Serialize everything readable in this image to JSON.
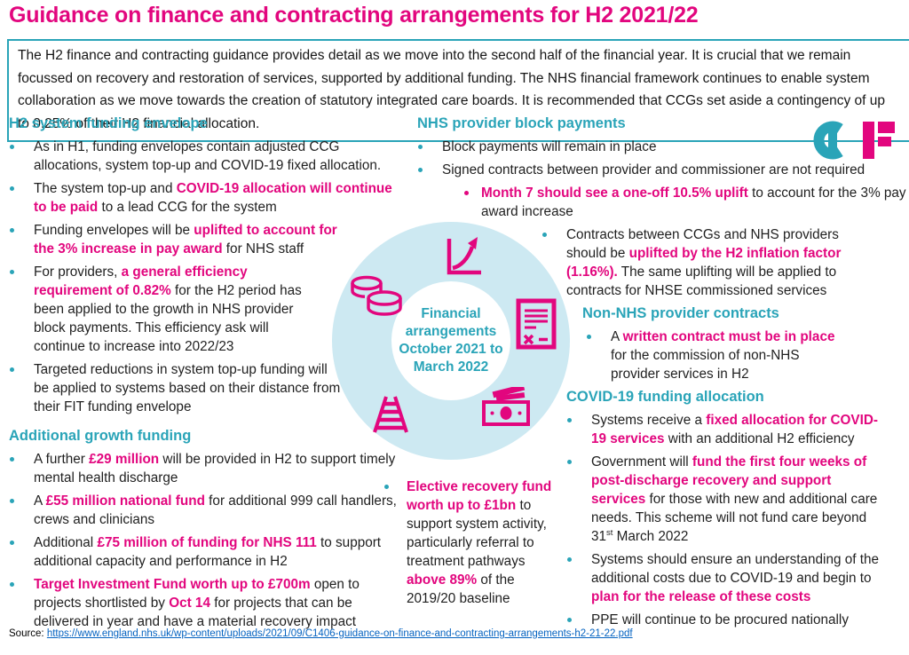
{
  "colors": {
    "magenta": "#E2067E",
    "teal": "#2AA4B8",
    "lightblue": "#CDE9F2",
    "link": "#0563C1",
    "text": "#1F1F1F"
  },
  "header": {
    "title": "Guidance on finance and contracting arrangements for H2 2021/22"
  },
  "intro": {
    "text": "The H2 finance and contracting guidance provides detail as we move into the second half of the financial year. It is crucial that we remain focussed on recovery and restoration of services, supported by additional funding. The NHS financial framework continues to enable system collaboration as we move towards the creation of statutory integrated care boards. It is recommended that CCGs set aside a contingency of up to 0.25% of their H2 financial allocation."
  },
  "logo": {
    "letters": "CF"
  },
  "sections": {
    "envelope": {
      "heading": "H2 system funding envelope",
      "bullets": [
        {
          "segments": [
            {
              "t": "As in H1, funding envelopes contain adjusted CCG allocations, system top-up and COVID-19 fixed allocation."
            }
          ]
        },
        {
          "segments": [
            {
              "t": "The system top-up and "
            },
            {
              "t": "COVID-19 allocation will continue to be paid",
              "b": true
            },
            {
              "t": " to a lead CCG for the system"
            }
          ]
        },
        {
          "segments": [
            {
              "t": "Funding envelopes will be "
            },
            {
              "t": "uplifted to account for the 3% increase in pay award",
              "b": true
            },
            {
              "t": " for NHS staff"
            }
          ]
        },
        {
          "segments": [
            {
              "t": "For providers, "
            },
            {
              "t": "a general efficiency requirement of 0.82%",
              "b": true
            },
            {
              "t": " for the H2 period has been applied to the growth in NHS provider block payments. This efficiency ask will continue to increase into 2022/23"
            }
          ]
        },
        {
          "segments": [
            {
              "t": "Targeted reductions in system top-up funding will be applied to systems based on their distance from their FIT funding envelope"
            }
          ]
        }
      ]
    },
    "growth": {
      "heading": "Additional growth funding",
      "bullets": [
        {
          "segments": [
            {
              "t": "A further "
            },
            {
              "t": "£29 million",
              "b": true
            },
            {
              "t": " will be provided in H2 to support timely mental health discharge"
            }
          ]
        },
        {
          "segments": [
            {
              "t": "A "
            },
            {
              "t": "£55 million national fund",
              "b": true
            },
            {
              "t": " for additional 999 call handlers, crews and clinicians"
            }
          ]
        },
        {
          "segments": [
            {
              "t": "Additional "
            },
            {
              "t": "£75 million of funding for NHS 111",
              "b": true
            },
            {
              "t": " to support additional capacity and performance in H2"
            }
          ]
        },
        {
          "segments": [
            {
              "t": "Target Investment Fund worth up to £700m",
              "b": true
            },
            {
              "t": " open to projects shortlisted by "
            },
            {
              "t": "Oct 14",
              "b": true
            },
            {
              "t": " for projects that can be delivered in year and have a material recovery impact"
            }
          ]
        }
      ]
    },
    "block": {
      "heading": "NHS provider block payments",
      "bullets": [
        {
          "segments": [
            {
              "t": "Block payments will remain in place"
            }
          ]
        },
        {
          "segments": [
            {
              "t": "Signed contracts between provider and commissioner are not required"
            }
          ]
        }
      ],
      "sub1": [
        {
          "pink": true,
          "segments": [
            {
              "t": "Month 7 should see a one-off 10.5% uplift",
              "b": true
            },
            {
              "t": " to account for the 3% pay award increase"
            }
          ]
        }
      ],
      "sub2": [
        {
          "segments": [
            {
              "t": "Contracts between CCGs and NHS providers should be "
            },
            {
              "t": "uplifted by the H2 inflation factor (1.16%).",
              "b": true
            },
            {
              "t": " The same uplifting will be applied to contracts for NHSE commissioned services"
            }
          ]
        }
      ]
    },
    "nonnhs": {
      "heading": "Non-NHS provider contracts",
      "bullets": [
        {
          "segments": [
            {
              "t": "A "
            },
            {
              "t": "written contract must be in place",
              "b": true
            },
            {
              "t": " for the commission of non-NHS provider services in H2"
            }
          ]
        }
      ]
    },
    "covid": {
      "heading": "COVID-19 funding allocation",
      "bullets": [
        {
          "segments": [
            {
              "t": "Systems receive a "
            },
            {
              "t": "fixed allocation for COVID-19 services",
              "b": true
            },
            {
              "t": " with an additional H2 efficiency"
            }
          ]
        },
        {
          "segments": [
            {
              "t": "Government will "
            },
            {
              "t": "fund the first four weeks of post-discharge recovery and support services",
              "b": true
            },
            {
              "t": " for those with new and additional care needs. This scheme will not fund care beyond 31"
            },
            {
              "t": "st",
              "sup": true
            },
            {
              "t": " March 2022"
            }
          ]
        },
        {
          "segments": [
            {
              "t": "Systems should ensure an understanding of the additional costs due to COVID-19 and begin to "
            },
            {
              "t": "plan for the release of these costs",
              "b": true
            }
          ]
        },
        {
          "segments": [
            {
              "t": "PPE will continue to be procured nationally"
            }
          ]
        }
      ]
    },
    "elective": {
      "bullets": [
        {
          "segments": [
            {
              "t": "Elective recovery fund worth up to £1bn",
              "b": true
            },
            {
              "t": " to support system activity, particularly referral to treatment pathways "
            },
            {
              "t": "above 89%",
              "b": true
            },
            {
              "t": " of the 2019/20 baseline"
            }
          ]
        }
      ]
    }
  },
  "circle": {
    "label": "Financial arrangements October 2021 to March 2022",
    "icons": [
      "growth-chart",
      "coins",
      "contract",
      "banknotes",
      "railway"
    ]
  },
  "source": {
    "label": "Source:",
    "url": "https://www.england.nhs.uk/wp-content/uploads/2021/09/C1406-guidance-on-finance-and-contracting-arrangements-h2-21-22.pdf"
  }
}
